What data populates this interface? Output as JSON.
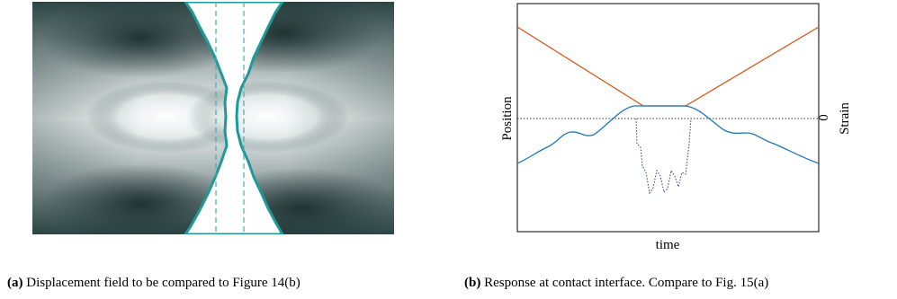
{
  "panel_a": {
    "caption_label": "(a)",
    "caption_text": "Displacement field to be compared to Figure 14(b)",
    "colors": {
      "dark": "#24403f",
      "light": "#ffffff",
      "boundary": "#1f9a98",
      "dashed": "#4aa9b8"
    }
  },
  "panel_b": {
    "caption_label": "(b)",
    "caption_text": "Response at contact interface. Compare to Fig. 15(a)",
    "chart_data": {
      "type": "line",
      "xlabel": "time",
      "ylabel_left": "Position",
      "ylabel_right": "Strain",
      "right_tick_label": "0",
      "series": [
        {
          "color": "#d4581e",
          "style": "solid"
        },
        {
          "color": "#1f77b4",
          "style": "solid"
        },
        {
          "color": "#2b3a67",
          "style": "dotted"
        },
        {
          "color": "#333333",
          "style": "dotted"
        }
      ]
    }
  }
}
